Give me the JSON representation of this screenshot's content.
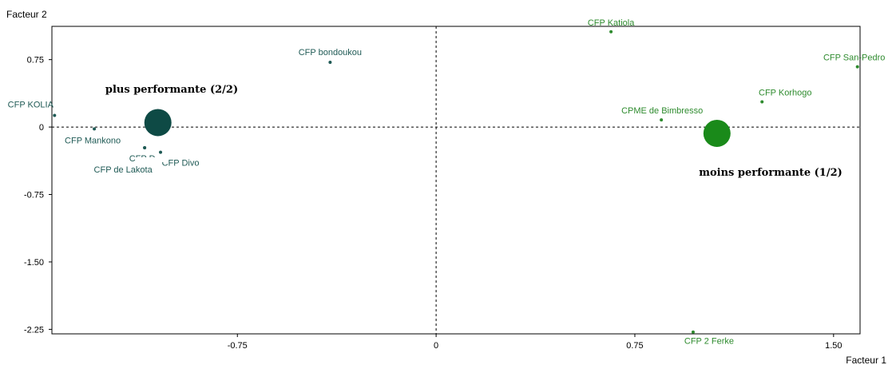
{
  "chart_data": {
    "type": "scatter",
    "xlabel": "Facteur 1",
    "ylabel": "Facteur 2",
    "xlim": [
      -1.45,
      1.6
    ],
    "ylim": [
      -2.3,
      1.12
    ],
    "xticks": [
      -0.75,
      0,
      0.75,
      1.5
    ],
    "xtick_labels": [
      "-0.75",
      "0",
      "0.75",
      "1.50"
    ],
    "yticks": [
      0.75,
      0,
      -0.75,
      -1.5,
      -2.25
    ],
    "ytick_labels": [
      "0.75",
      "0",
      "-0.75",
      "-1.50",
      "-2.25"
    ],
    "reference_lines": {
      "x": 0,
      "y": 0,
      "style": "dashed"
    },
    "series": [
      {
        "color": "#1f5a55",
        "points": [
          {
            "label": "CFP KOLIA",
            "x": -1.44,
            "y": 0.13
          },
          {
            "label": "CFP Mankono",
            "x": -1.29,
            "y": -0.02
          },
          {
            "label": "CFP bondoukou",
            "x": -0.4,
            "y": 0.72
          },
          {
            "label": "CFP D",
            "x": -1.1,
            "y": -0.23
          },
          {
            "label": "CFP de Lakota",
            "x": -1.1,
            "y": -0.23
          },
          {
            "label": "CFP Divo",
            "x": -1.04,
            "y": -0.28
          }
        ]
      },
      {
        "color": "#2e8b2e",
        "points": [
          {
            "label": "CFP Katiola",
            "x": 0.66,
            "y": 1.06
          },
          {
            "label": "CFP San-Pedro",
            "x": 1.59,
            "y": 0.67
          },
          {
            "label": "CFP Korhogo",
            "x": 1.23,
            "y": 0.28
          },
          {
            "label": "CPME de Bimbresso",
            "x": 0.85,
            "y": 0.08
          },
          {
            "label": "CFP 2 Ferke",
            "x": 0.97,
            "y": -2.28
          }
        ]
      }
    ],
    "class_centers": [
      {
        "label": "plus performante (2/2)",
        "x": -1.05,
        "y": 0.05,
        "color": "#0e4a45"
      },
      {
        "label": "moins performante (1/2)",
        "x": 1.06,
        "y": -0.07,
        "color": "#1a8a1a"
      }
    ]
  }
}
